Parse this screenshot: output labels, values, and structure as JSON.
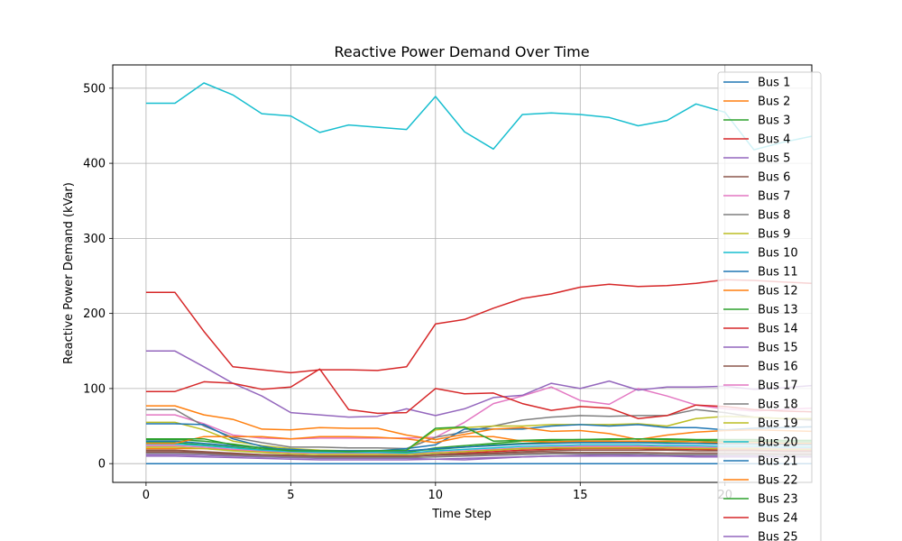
{
  "chart_data": {
    "type": "line",
    "title": "Reactive Power Demand Over Time",
    "xlabel": "Time Step",
    "ylabel": "Reactive Power Demand (kVar)",
    "xlim": [
      -1.15,
      23
    ],
    "ylim": [
      -25,
      531
    ],
    "xticks": [
      0,
      5,
      10,
      15,
      20
    ],
    "yticks": [
      0,
      100,
      200,
      300,
      400,
      500
    ],
    "grid": true,
    "legend_position": "upper-right",
    "x": [
      0,
      1,
      2,
      3,
      4,
      5,
      6,
      7,
      8,
      9,
      10,
      11,
      12,
      13,
      14,
      15,
      16,
      17,
      18,
      19,
      20,
      21,
      22,
      23
    ],
    "series": [
      {
        "name": "Bus 1",
        "color": "#1f77b4",
        "values": [
          0,
          0,
          0,
          0,
          0,
          0,
          0,
          0,
          0,
          0,
          0,
          0,
          0,
          0,
          0,
          0,
          0,
          0,
          0,
          0,
          0,
          0,
          0,
          0
        ]
      },
      {
        "name": "Bus 2",
        "color": "#ff7f0e",
        "values": [
          20,
          20,
          20,
          18,
          16,
          15,
          14,
          14,
          14,
          13,
          15,
          16,
          18,
          20,
          21,
          22,
          22,
          23,
          22,
          21,
          20,
          20,
          19,
          19
        ]
      },
      {
        "name": "Bus 3",
        "color": "#2ca02c",
        "values": [
          28,
          28,
          25,
          22,
          19,
          17,
          15,
          15,
          15,
          15,
          21,
          24,
          27,
          30,
          31,
          32,
          32,
          33,
          32,
          31,
          30,
          30,
          29,
          29
        ]
      },
      {
        "name": "Bus 4",
        "color": "#d62728",
        "values": [
          15,
          15,
          14,
          12,
          11,
          10,
          9,
          9,
          9,
          9,
          12,
          14,
          16,
          18,
          19,
          20,
          20,
          20,
          19,
          19,
          18,
          18,
          17,
          17
        ]
      },
      {
        "name": "Bus 5",
        "color": "#9467bd",
        "values": [
          12,
          12,
          11,
          10,
          9,
          8,
          7,
          7,
          7,
          7,
          6,
          5,
          7,
          9,
          10,
          11,
          12,
          11,
          11,
          10,
          10,
          10,
          9,
          9
        ]
      },
      {
        "name": "Bus 6",
        "color": "#8c564b",
        "values": [
          16,
          16,
          15,
          13,
          12,
          11,
          10,
          10,
          10,
          10,
          12,
          13,
          14,
          16,
          17,
          18,
          18,
          18,
          18,
          17,
          17,
          17,
          16,
          16
        ]
      },
      {
        "name": "Bus 7",
        "color": "#e377c2",
        "values": [
          65,
          65,
          53,
          38,
          34,
          33,
          34,
          34,
          34,
          34,
          35,
          55,
          80,
          90,
          102,
          84,
          79,
          100,
          90,
          78,
          73,
          70,
          72,
          74
        ]
      },
      {
        "name": "Bus 8",
        "color": "#7f7f7f",
        "values": [
          72,
          72,
          50,
          35,
          28,
          22,
          22,
          21,
          21,
          20,
          35,
          42,
          50,
          58,
          62,
          64,
          63,
          64,
          64,
          72,
          68,
          62,
          60,
          58
        ]
      },
      {
        "name": "Bus 9",
        "color": "#bcbd22",
        "values": [
          55,
          55,
          45,
          30,
          24,
          20,
          18,
          17,
          17,
          17,
          45,
          48,
          50,
          50,
          52,
          52,
          52,
          53,
          50,
          60,
          63,
          62,
          60,
          60
        ]
      },
      {
        "name": "Bus 10",
        "color": "#17becf",
        "values": [
          480,
          480,
          507,
          491,
          466,
          463,
          441,
          451,
          448,
          445,
          489,
          442,
          419,
          465,
          467,
          465,
          461,
          450,
          457,
          479,
          468,
          418,
          428,
          436
        ]
      },
      {
        "name": "Bus 11",
        "color": "#1f77b4",
        "values": [
          53,
          53,
          52,
          33,
          23,
          17,
          17,
          17,
          17,
          20,
          25,
          46,
          46,
          46,
          50,
          52,
          50,
          52,
          48,
          48,
          45,
          47,
          48,
          49
        ]
      },
      {
        "name": "Bus 12",
        "color": "#ff7f0e",
        "values": [
          77,
          77,
          65,
          59,
          46,
          45,
          48,
          47,
          47,
          38,
          32,
          39,
          46,
          48,
          43,
          44,
          40,
          32,
          38,
          42,
          44,
          45,
          44,
          43
        ]
      },
      {
        "name": "Bus 13",
        "color": "#2ca02c",
        "values": [
          32,
          32,
          30,
          26,
          21,
          18,
          17,
          17,
          17,
          17,
          19,
          22,
          25,
          27,
          28,
          28,
          28,
          28,
          28,
          27,
          27,
          26,
          26,
          26
        ]
      },
      {
        "name": "Bus 14",
        "color": "#d62728",
        "values": [
          228,
          228,
          176,
          129,
          125,
          121,
          125,
          125,
          124,
          129,
          186,
          192,
          207,
          220,
          226,
          235,
          239,
          236,
          237,
          240,
          245,
          244,
          242,
          240
        ]
      },
      {
        "name": "Bus 15",
        "color": "#9467bd",
        "values": [
          150,
          150,
          129,
          107,
          90,
          68,
          65,
          62,
          63,
          73,
          64,
          73,
          88,
          91,
          107,
          100,
          110,
          98,
          102,
          102,
          103,
          99,
          101,
          104
        ]
      },
      {
        "name": "Bus 16",
        "color": "#8c564b",
        "values": [
          18,
          18,
          16,
          14,
          12,
          11,
          10,
          10,
          10,
          10,
          11,
          12,
          13,
          14,
          15,
          15,
          15,
          15,
          14,
          14,
          14,
          14,
          13,
          13
        ]
      },
      {
        "name": "Bus 17",
        "color": "#e377c2",
        "values": [
          24,
          24,
          22,
          19,
          17,
          15,
          14,
          14,
          14,
          13,
          15,
          17,
          19,
          21,
          22,
          23,
          23,
          23,
          22,
          22,
          21,
          21,
          20,
          20
        ]
      },
      {
        "name": "Bus 18",
        "color": "#7f7f7f",
        "values": [
          14,
          14,
          13,
          11,
          10,
          9,
          8,
          8,
          8,
          8,
          9,
          10,
          11,
          12,
          13,
          13,
          13,
          13,
          12,
          12,
          12,
          12,
          11,
          11
        ]
      },
      {
        "name": "Bus 19",
        "color": "#bcbd22",
        "values": [
          22,
          22,
          20,
          17,
          15,
          13,
          12,
          12,
          12,
          12,
          14,
          16,
          18,
          20,
          21,
          21,
          21,
          21,
          21,
          20,
          20,
          20,
          19,
          19
        ]
      },
      {
        "name": "Bus 20",
        "color": "#17becf",
        "values": [
          26,
          26,
          24,
          21,
          18,
          16,
          15,
          15,
          15,
          14,
          17,
          19,
          21,
          23,
          24,
          25,
          25,
          25,
          24,
          24,
          23,
          23,
          22,
          22
        ]
      },
      {
        "name": "Bus 21",
        "color": "#1f77b4",
        "values": [
          30,
          30,
          27,
          24,
          21,
          19,
          17,
          17,
          17,
          17,
          20,
          22,
          24,
          26,
          27,
          28,
          28,
          28,
          27,
          27,
          26,
          26,
          25,
          25
        ]
      },
      {
        "name": "Bus 22",
        "color": "#ff7f0e",
        "values": [
          27,
          27,
          36,
          36,
          36,
          33,
          36,
          36,
          35,
          33,
          28,
          36,
          36,
          30,
          29,
          30,
          30,
          30,
          30,
          29,
          28,
          28,
          27,
          27
        ]
      },
      {
        "name": "Bus 23",
        "color": "#2ca02c",
        "values": [
          33,
          33,
          33,
          25,
          21,
          17,
          17,
          16,
          17,
          18,
          47,
          49,
          30,
          31,
          32,
          32,
          33,
          33,
          33,
          32,
          32,
          32,
          31,
          31
        ]
      },
      {
        "name": "Bus 24",
        "color": "#d62728",
        "values": [
          96,
          96,
          109,
          107,
          99,
          102,
          126,
          72,
          67,
          68,
          100,
          93,
          94,
          80,
          71,
          76,
          74,
          60,
          64,
          78,
          76,
          72,
          70,
          69
        ]
      },
      {
        "name": "Bus 25",
        "color": "#9467bd",
        "values": [
          10,
          10,
          9,
          8,
          7,
          6,
          5,
          5,
          5,
          5,
          6,
          7,
          8,
          9,
          10,
          10,
          10,
          10,
          10,
          9,
          9,
          9,
          9,
          9
        ]
      }
    ]
  }
}
